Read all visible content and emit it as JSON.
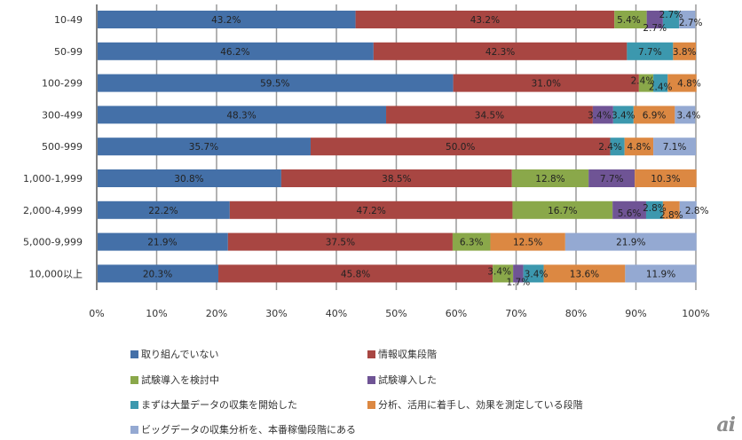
{
  "chart_data": {
    "type": "bar",
    "orientation": "horizontal",
    "stacked": "percent",
    "title": "",
    "xlabel": "",
    "ylabel": "",
    "xlim": [
      0,
      100
    ],
    "grid": true,
    "legend_position": "bottom",
    "x_ticks": [
      "0%",
      "10%",
      "20%",
      "30%",
      "40%",
      "50%",
      "60%",
      "70%",
      "80%",
      "90%",
      "100%"
    ],
    "categories": [
      "10-49",
      "50-99",
      "100-299",
      "300-499",
      "500-999",
      "1,000-1,999",
      "2,000-4,999",
      "5,000-9,999",
      "10,000以上"
    ],
    "series": [
      {
        "name": "取り組んでいない",
        "color": "#4470a8",
        "values": [
          43.2,
          46.2,
          59.5,
          48.3,
          35.7,
          30.8,
          22.2,
          21.9,
          20.3
        ]
      },
      {
        "name": "情報収集段階",
        "color": "#a84642",
        "values": [
          43.2,
          42.3,
          31.0,
          34.5,
          50.0,
          38.5,
          47.2,
          37.5,
          45.8
        ]
      },
      {
        "name": "試験導入を検討中",
        "color": "#8aa84a",
        "values": [
          5.4,
          0,
          2.4,
          0,
          0,
          12.8,
          16.7,
          6.3,
          3.4
        ]
      },
      {
        "name": "試験導入した",
        "color": "#6f5495",
        "values": [
          2.7,
          0,
          0,
          3.4,
          0,
          7.7,
          5.6,
          0,
          1.7
        ]
      },
      {
        "name": "まずは大量データの収集を開始した",
        "color": "#3c98ae",
        "values": [
          2.7,
          7.7,
          2.4,
          3.4,
          2.4,
          0,
          2.8,
          0,
          3.4
        ]
      },
      {
        "name": "分析、活用に着手し、効果を測定している段階",
        "color": "#dc8842",
        "values": [
          0,
          3.8,
          4.8,
          6.9,
          4.8,
          10.3,
          2.8,
          12.5,
          13.6
        ]
      },
      {
        "name": "ビッグデータの収集分析を、本番稼働段階にある",
        "color": "#94a9d2",
        "values": [
          2.7,
          0,
          0,
          3.4,
          7.1,
          0,
          2.8,
          21.9,
          11.9
        ]
      }
    ],
    "data_labels": [
      [
        "43.2%",
        "43.2%",
        "5.4%",
        "2.7%",
        "2.7%",
        null,
        "2.7%"
      ],
      [
        "46.2%",
        "42.3%",
        null,
        null,
        "7.7%",
        "3.8%",
        null
      ],
      [
        "59.5%",
        "31.0%",
        "2.4%",
        null,
        "2.4%",
        "4.8%",
        null
      ],
      [
        "48.3%",
        "34.5%",
        null,
        "3.4%",
        "3.4%",
        "6.9%",
        "3.4%"
      ],
      [
        "35.7%",
        "50.0%",
        null,
        null,
        "2.4%",
        "4.8%",
        "7.1%"
      ],
      [
        "30.8%",
        "38.5%",
        "12.8%",
        "7.7%",
        null,
        "10.3%",
        null
      ],
      [
        "22.2%",
        "47.2%",
        "16.7%",
        "5.6%",
        "2.8%",
        "2.8%",
        "2.8%"
      ],
      [
        "21.9%",
        "37.5%",
        "6.3%",
        null,
        null,
        "12.5%",
        "21.9%"
      ],
      [
        "20.3%",
        "45.8%",
        "3.4%",
        "1.7%",
        "3.4%",
        "13.6%",
        "11.9%"
      ]
    ]
  },
  "logo_text": "ai"
}
